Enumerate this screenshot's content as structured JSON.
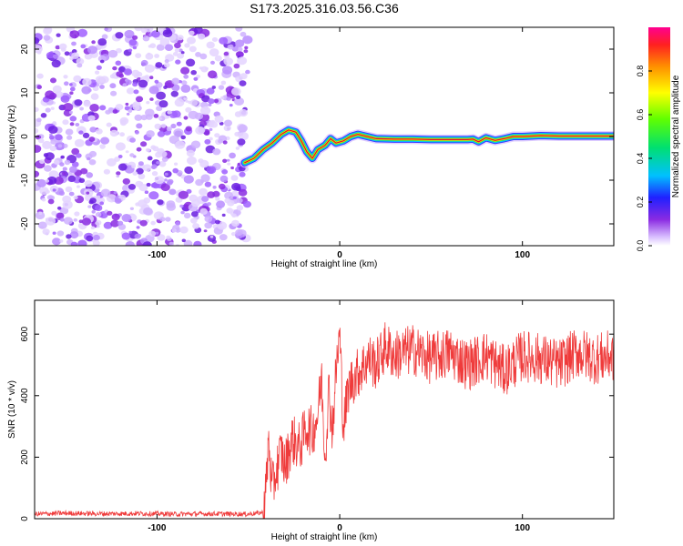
{
  "figure_title": "S173.2025.316.03.56.C36",
  "colors": {
    "snr_line": "#ef3b3b",
    "axis": "#000000",
    "noise": "#9a4dff",
    "track_outer": "#3a3aff",
    "track_inner": "#e01030"
  },
  "chart_data": [
    {
      "type": "heatmap",
      "title": "",
      "xlabel": "Height of straight line (km)",
      "ylabel": "Frequency (Hz)",
      "xlim": [
        -167,
        150
      ],
      "ylim": [
        -25,
        25
      ],
      "xticks": [
        -100,
        0,
        100
      ],
      "xtick_labels": [
        "-100",
        "0",
        "100"
      ],
      "yticks": [
        -20,
        -10,
        0,
        10,
        20
      ],
      "ytick_labels": [
        "-20",
        "-10",
        "0",
        "10",
        "20"
      ],
      "noise_region": [
        -167,
        -50
      ],
      "track": {
        "x": [
          -52,
          -47,
          -42,
          -37,
          -32,
          -28,
          -24,
          -21,
          -18,
          -15,
          -12,
          -8,
          -5,
          -2,
          2,
          6,
          10,
          15,
          20,
          30,
          40,
          50,
          60,
          70,
          73,
          76,
          80,
          85,
          90,
          95,
          100,
          110,
          120,
          130,
          140,
          150
        ],
        "y": [
          -6,
          -5,
          -3,
          -1.5,
          0.5,
          1.5,
          1,
          -1,
          -3.5,
          -5,
          -3,
          -2,
          -0.5,
          -1.5,
          -1,
          0,
          0.5,
          0,
          -0.5,
          -0.6,
          -0.6,
          -0.7,
          -0.7,
          -0.7,
          -0.6,
          -1.2,
          -0.3,
          -0.9,
          -0.5,
          0,
          0,
          0.2,
          0.1,
          0.1,
          0.1,
          0.1
        ]
      },
      "colorbar": {
        "label": "Normalized spectral amplitude",
        "range": [
          0,
          1
        ],
        "ticks": [
          0.0,
          0.2,
          0.4,
          0.6,
          0.8
        ],
        "tick_labels": [
          "0.0",
          "0.2",
          "0.4",
          "0.6",
          "0.8"
        ]
      }
    },
    {
      "type": "line",
      "title": "",
      "xlabel": "Height of straight line (km)",
      "ylabel": "SNR (10 * v/v)",
      "xlim": [
        -167,
        150
      ],
      "ylim": [
        0,
        710
      ],
      "xticks": [
        -100,
        0,
        100
      ],
      "xtick_labels": [
        "-100",
        "0",
        "100"
      ],
      "yticks": [
        0,
        200,
        400,
        600
      ],
      "ytick_labels": [
        "0",
        "200",
        "400",
        "600"
      ],
      "series": [
        {
          "name": "SNR",
          "x": [
            -167,
            -150,
            -130,
            -110,
            -90,
            -70,
            -50,
            -42,
            -40,
            -39,
            -37,
            -35,
            -32,
            -30,
            -26,
            -22,
            -18,
            -15,
            -12,
            -10,
            -8,
            -6,
            -4,
            -2,
            0,
            2,
            5,
            8,
            12,
            16,
            20,
            25,
            30,
            40,
            50,
            60,
            70,
            80,
            90,
            100,
            110,
            120,
            130,
            140,
            150
          ],
          "y": [
            15,
            18,
            16,
            17,
            15,
            16,
            15,
            20,
            120,
            260,
            90,
            150,
            220,
            170,
            260,
            230,
            300,
            280,
            340,
            460,
            200,
            420,
            290,
            480,
            600,
            300,
            430,
            460,
            490,
            520,
            500,
            560,
            530,
            550,
            520,
            540,
            500,
            530,
            480,
            530,
            520,
            500,
            540,
            520,
            530
          ]
        }
      ]
    }
  ]
}
